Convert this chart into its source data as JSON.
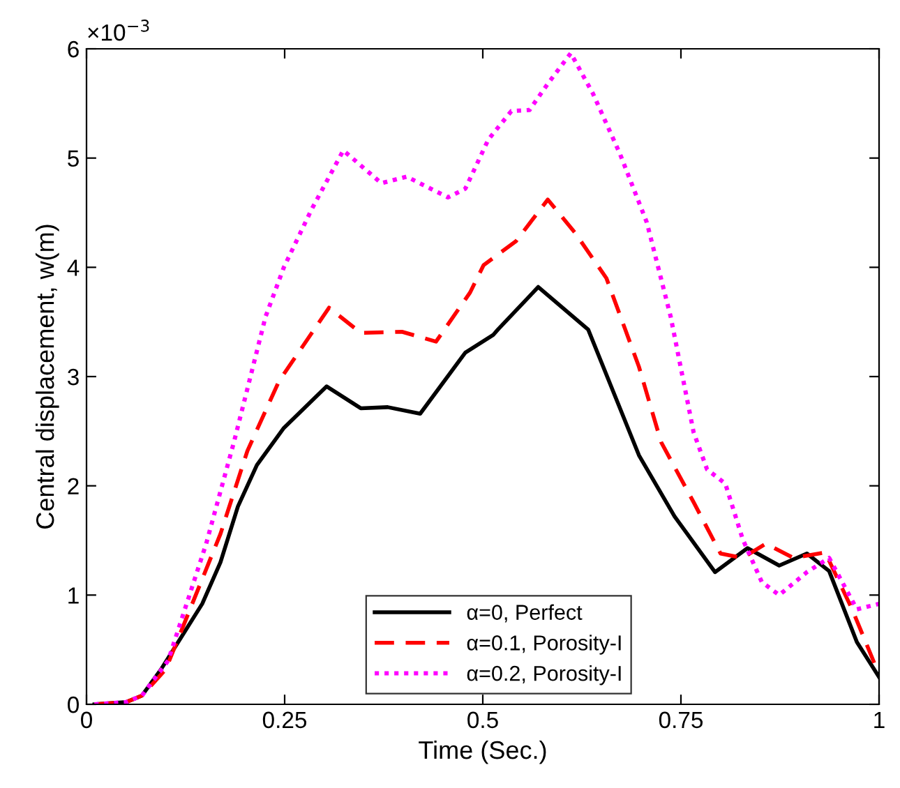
{
  "chart_data": {
    "type": "line",
    "xlabel": "Time (Sec.)",
    "ylabel": "Central displacement, w(m)",
    "annotations": [
      "×10$^{−3}$"
    ],
    "xlim": [
      0,
      1
    ],
    "ylim": [
      0,
      6
    ],
    "xticks": [
      0,
      0.25,
      0.5,
      0.75,
      1
    ],
    "yticks": [
      0,
      1,
      2,
      3,
      4,
      5,
      6
    ],
    "grid": false,
    "legend": "bottom",
    "marker": "none",
    "series": [
      {
        "name": "α=0, Perfect",
        "color": "#000000",
        "line_style": "solid",
        "x": [
          0.01,
          0.05,
          0.07,
          0.094,
          0.146,
          0.169,
          0.191,
          0.215,
          0.249,
          0.303,
          0.346,
          0.38,
          0.421,
          0.478,
          0.513,
          0.519,
          0.57,
          0.633,
          0.697,
          0.742,
          0.793,
          0.834,
          0.874,
          0.909,
          0.937,
          0.972,
          1
        ],
        "values": [
          0,
          0.02,
          0.08,
          0.32,
          0.92,
          1.3,
          1.81,
          2.19,
          2.53,
          2.91,
          2.71,
          2.72,
          2.66,
          3.22,
          3.38,
          3.43,
          3.82,
          3.43,
          2.28,
          1.72,
          1.21,
          1.43,
          1.27,
          1.38,
          1.22,
          0.57,
          0.25
        ]
      },
      {
        "name": "α=0.1, Porosity-I",
        "color": "#ff0000",
        "line_style": "dashed",
        "x": [
          0.01,
          0.05,
          0.07,
          0.1,
          0.169,
          0.203,
          0.243,
          0.306,
          0.346,
          0.398,
          0.441,
          0.484,
          0.501,
          0.542,
          0.582,
          0.616,
          0.656,
          0.697,
          0.725,
          0.766,
          0.8,
          0.828,
          0.857,
          0.892,
          0.932,
          0.966,
          0.995,
          1
        ],
        "values": [
          0,
          0.02,
          0.08,
          0.32,
          1.56,
          2.32,
          2.96,
          3.63,
          3.4,
          3.41,
          3.32,
          3.77,
          4.02,
          4.24,
          4.62,
          4.32,
          3.9,
          3.09,
          2.4,
          1.85,
          1.38,
          1.34,
          1.47,
          1.34,
          1.39,
          0.87,
          0.36,
          0.3
        ]
      },
      {
        "name": "α=0.2, Porosity-I",
        "color": "#ff00ff",
        "line_style": "dotted",
        "x": [
          0.01,
          0.05,
          0.07,
          0.103,
          0.151,
          0.186,
          0.226,
          0.249,
          0.284,
          0.324,
          0.372,
          0.404,
          0.456,
          0.478,
          0.507,
          0.536,
          0.559,
          0.582,
          0.611,
          0.639,
          0.673,
          0.707,
          0.737,
          0.766,
          0.783,
          0.806,
          0.828,
          0.852,
          0.874,
          0.909,
          0.937,
          0.972,
          1
        ],
        "values": [
          0,
          0.02,
          0.08,
          0.4,
          1.47,
          2.4,
          3.55,
          4.0,
          4.53,
          5.07,
          4.77,
          4.83,
          4.64,
          4.72,
          5.17,
          5.43,
          5.44,
          5.68,
          5.96,
          5.59,
          5.04,
          4.41,
          3.55,
          2.49,
          2.15,
          2.02,
          1.51,
          1.12,
          1.0,
          1.21,
          1.34,
          0.87,
          0.92
        ]
      }
    ]
  }
}
